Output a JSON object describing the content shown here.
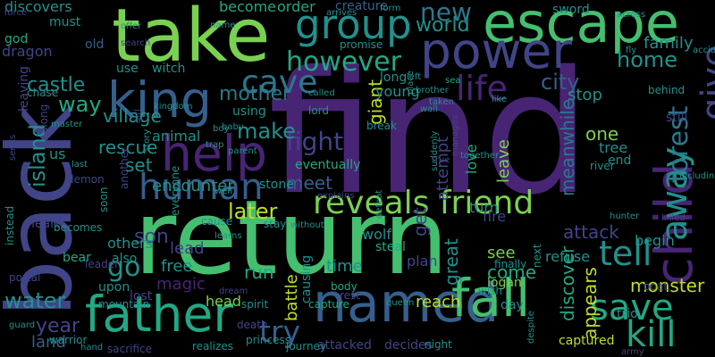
{
  "colors": {
    "background": "#000000",
    "c1": "#440154",
    "c2": "#482475",
    "c3": "#414487",
    "c4": "#355f8d",
    "c5": "#2a788e",
    "c6": "#21918c",
    "c7": "#22a884",
    "c8": "#44bf70",
    "c9": "#7ad151",
    "c10": "#bddf26"
  },
  "words": [
    {
      "text": "find",
      "color": "#482475",
      "rot": 0
    },
    {
      "text": "return",
      "color": "#44bf70",
      "rot": 0
    },
    {
      "text": "back",
      "color": "#414487",
      "rot": -90
    },
    {
      "text": "take",
      "color": "#7ad151",
      "rot": 0
    },
    {
      "text": "escape",
      "color": "#44bf70",
      "rot": 0
    },
    {
      "text": "power",
      "color": "#414487",
      "rot": 0
    },
    {
      "text": "named",
      "color": "#355f8d",
      "rot": 0
    },
    {
      "text": "fall",
      "color": "#44bf70",
      "rot": 0
    },
    {
      "text": "father",
      "color": "#22a884",
      "rot": 0
    },
    {
      "text": "king",
      "color": "#355f8d",
      "rot": 0
    },
    {
      "text": "help",
      "color": "#482475",
      "rot": 0
    },
    {
      "text": "child",
      "color": "#482475",
      "rot": -90
    },
    {
      "text": "group",
      "color": "#21918c",
      "rot": 0
    },
    {
      "text": "human",
      "color": "#355f8d",
      "rot": 0
    },
    {
      "text": "reveals friend",
      "color": "#7ad151",
      "rot": 0
    },
    {
      "text": "life",
      "color": "#482475",
      "rot": 0
    },
    {
      "text": "save",
      "color": "#22a884",
      "rot": 0
    },
    {
      "text": "tell",
      "color": "#21918c",
      "rot": 0
    },
    {
      "text": "kill",
      "color": "#22a884",
      "rot": 0
    },
    {
      "text": "give",
      "color": "#414487",
      "rot": -90
    },
    {
      "text": "away",
      "color": "#21918c",
      "rot": -90
    },
    {
      "text": "forest",
      "color": "#2a788e",
      "rot": -90
    },
    {
      "text": "try",
      "color": "#355f8d",
      "rot": 0
    },
    {
      "text": "cave",
      "color": "#2a788e",
      "rot": 0
    },
    {
      "text": "however",
      "color": "#22a884",
      "rot": 0
    },
    {
      "text": "new",
      "color": "#2a788e",
      "rot": 0
    },
    {
      "text": "world",
      "color": "#21918c",
      "rot": 0
    },
    {
      "text": "home",
      "color": "#21918c",
      "rot": 0
    },
    {
      "text": "city",
      "color": "#355f8d",
      "rot": 0
    },
    {
      "text": "family",
      "color": "#21918c",
      "rot": 0
    },
    {
      "text": "mother",
      "color": "#2a788e",
      "rot": 0
    },
    {
      "text": "fight",
      "color": "#414487",
      "rot": 0
    },
    {
      "text": "meet",
      "color": "#355f8d",
      "rot": 0
    },
    {
      "text": "later",
      "color": "#bddf26",
      "rot": 0
    },
    {
      "text": "make",
      "color": "#21918c",
      "rot": 0
    },
    {
      "text": "village",
      "color": "#21918c",
      "rot": 0
    },
    {
      "text": "way",
      "color": "#22a884",
      "rot": 0
    },
    {
      "text": "rescue",
      "color": "#21918c",
      "rot": 0
    },
    {
      "text": "castle",
      "color": "#21918c",
      "rot": 0
    },
    {
      "text": "island",
      "color": "#21918c",
      "rot": -90
    },
    {
      "text": "water",
      "color": "#21918c",
      "rot": 0
    },
    {
      "text": "year",
      "color": "#414487",
      "rot": 0
    },
    {
      "text": "land",
      "color": "#355f8d",
      "rot": 0
    },
    {
      "text": "go",
      "color": "#21918c",
      "rot": 0
    },
    {
      "text": "son",
      "color": "#414487",
      "rot": 0
    },
    {
      "text": "set",
      "color": "#21918c",
      "rot": 0
    },
    {
      "text": "us",
      "color": "#21918c",
      "rot": 0
    },
    {
      "text": "battle",
      "color": "#bddf26",
      "rot": -90
    },
    {
      "text": "causing",
      "color": "#21918c",
      "rot": -90
    },
    {
      "text": "run",
      "color": "#22a884",
      "rot": 0
    },
    {
      "text": "free",
      "color": "#21918c",
      "rot": 0
    },
    {
      "text": "lead",
      "color": "#414487",
      "rot": 0
    },
    {
      "text": "magic",
      "color": "#482475",
      "rot": 0
    },
    {
      "text": "time",
      "color": "#21918c",
      "rot": 0
    },
    {
      "text": "get",
      "color": "#414487",
      "rot": -90
    },
    {
      "text": "great",
      "color": "#21918c",
      "rot": -90
    },
    {
      "text": "attack",
      "color": "#414487",
      "rot": 0
    },
    {
      "text": "monster",
      "color": "#bddf26",
      "rot": 0
    },
    {
      "text": "appears",
      "color": "#bddf26",
      "rot": -90
    },
    {
      "text": "discover",
      "color": "#22a884",
      "rot": -90
    },
    {
      "text": "see",
      "color": "#7ad151",
      "rot": 0
    },
    {
      "text": "come",
      "color": "#22a884",
      "rot": 0
    },
    {
      "text": "plan",
      "color": "#414487",
      "rot": 0
    },
    {
      "text": "logan",
      "color": "#7ad151",
      "rot": 0
    },
    {
      "text": "refuse",
      "color": "#21918c",
      "rot": 0
    },
    {
      "text": "begin",
      "color": "#21918c",
      "rot": 0
    },
    {
      "text": "reach",
      "color": "#bddf26",
      "rot": 0
    },
    {
      "text": "giant",
      "color": "#bddf26",
      "rot": -90
    },
    {
      "text": "attempt",
      "color": "#414487",
      "rot": -90
    },
    {
      "text": "one",
      "color": "#7ad151",
      "rot": 0
    },
    {
      "text": "tree",
      "color": "#21918c",
      "rot": 0
    },
    {
      "text": "end",
      "color": "#21918c",
      "rot": 0
    },
    {
      "text": "leave",
      "color": "#7ad151",
      "rot": -90
    },
    {
      "text": "love",
      "color": "#22a884",
      "rot": -90
    },
    {
      "text": "turn",
      "color": "#21918c",
      "rot": 0
    },
    {
      "text": "fire",
      "color": "#414487",
      "rot": 0
    },
    {
      "text": "encounter",
      "color": "#21918c",
      "rot": 0
    },
    {
      "text": "animal",
      "color": "#21918c",
      "rot": 0
    },
    {
      "text": "stone",
      "color": "#21918c",
      "rot": 0
    },
    {
      "text": "eventually",
      "color": "#22a884",
      "rot": 0
    },
    {
      "text": "wolf",
      "color": "#21918c",
      "rot": 0
    },
    {
      "text": "steal",
      "color": "#22a884",
      "rot": 0
    },
    {
      "text": "meanwhile",
      "color": "#2a788e",
      "rot": -90
    },
    {
      "text": "stop",
      "color": "#21918c",
      "rot": 0
    },
    {
      "text": "young",
      "color": "#21918c",
      "rot": 0
    },
    {
      "text": "long",
      "color": "#21918c",
      "rot": 0
    },
    {
      "text": "become",
      "color": "#22a884",
      "rot": 0
    },
    {
      "text": "order",
      "color": "#22a884",
      "rot": 0
    },
    {
      "text": "creature",
      "color": "#355f8d",
      "rot": 0
    },
    {
      "text": "discovers",
      "color": "#21918c",
      "rot": 0
    },
    {
      "text": "must",
      "color": "#21918c",
      "rot": 0
    },
    {
      "text": "god",
      "color": "#22a884",
      "rot": 0
    },
    {
      "text": "dragon",
      "color": "#414487",
      "rot": 0
    },
    {
      "text": "old",
      "color": "#355f8d",
      "rot": 0
    },
    {
      "text": "use",
      "color": "#21918c",
      "rot": 0
    },
    {
      "text": "witch",
      "color": "#21918c",
      "rot": 0
    },
    {
      "text": "leaving",
      "color": "#414487",
      "rot": -90
    },
    {
      "text": "along",
      "color": "#414487",
      "rot": -90
    },
    {
      "text": "using",
      "color": "#21918c",
      "rot": 0
    },
    {
      "text": "lord",
      "color": "#21918c",
      "rot": 0
    },
    {
      "text": "break",
      "color": "#21918c",
      "rot": 0
    },
    {
      "text": "sword",
      "color": "#21918c",
      "rot": 0
    },
    {
      "text": "behind",
      "color": "#21918c",
      "rot": 0
    },
    {
      "text": "still",
      "color": "#414487",
      "rot": 0
    },
    {
      "text": "river",
      "color": "#21918c",
      "rot": 0
    },
    {
      "text": "others",
      "color": "#21918c",
      "rot": 0
    },
    {
      "text": "also",
      "color": "#21918c",
      "rot": 0
    },
    {
      "text": "upon",
      "color": "#21918c",
      "rot": 0
    },
    {
      "text": "lost",
      "color": "#414487",
      "rot": 0
    },
    {
      "text": "head",
      "color": "#7ad151",
      "rot": 0
    },
    {
      "text": "spirit",
      "color": "#21918c",
      "rot": 0
    },
    {
      "text": "capture",
      "color": "#22a884",
      "rot": 0
    },
    {
      "text": "attacked",
      "color": "#414487",
      "rot": 0
    },
    {
      "text": "decides",
      "color": "#414487",
      "rot": 0
    },
    {
      "text": "night",
      "color": "#21918c",
      "rot": 0
    },
    {
      "text": "captured",
      "color": "#bddf26",
      "rot": 0
    },
    {
      "text": "bear",
      "color": "#22a884",
      "rot": 0
    },
    {
      "text": "heart",
      "color": "#414487",
      "rot": 0
    },
    {
      "text": "soon",
      "color": "#21918c",
      "rot": -90
    },
    {
      "text": "warrior",
      "color": "#21918c",
      "rot": 0
    },
    {
      "text": "mountain",
      "color": "#21918c",
      "rot": 0
    },
    {
      "text": "princess",
      "color": "#21918c",
      "rot": 0
    },
    {
      "text": "journey",
      "color": "#21918c",
      "rot": 0
    },
    {
      "text": "hand",
      "color": "#21918c",
      "rot": 0
    },
    {
      "text": "sacrifice",
      "color": "#414487",
      "rot": 0
    },
    {
      "text": "realizes",
      "color": "#21918c",
      "rot": 0
    },
    {
      "text": "death",
      "color": "#414487",
      "rot": 0
    },
    {
      "text": "dream",
      "color": "#414487",
      "rot": 0
    },
    {
      "text": "body",
      "color": "#22a884",
      "rot": 0
    },
    {
      "text": "rest",
      "color": "#414487",
      "rot": 0
    },
    {
      "text": "queen",
      "color": "#21918c",
      "rot": 0
    },
    {
      "text": "day",
      "color": "#21918c",
      "rot": 0
    },
    {
      "text": "boat",
      "color": "#414487",
      "rot": 0
    },
    {
      "text": "trio",
      "color": "#21918c",
      "rot": 0
    },
    {
      "text": "wish",
      "color": "#21918c",
      "rot": 0
    },
    {
      "text": "hunter",
      "color": "#21918c",
      "rot": 0
    },
    {
      "text": "killed",
      "color": "#414487",
      "rot": 0
    },
    {
      "text": "finally",
      "color": "#21918c",
      "rot": 0
    },
    {
      "text": "next",
      "color": "#21918c",
      "rot": -90
    },
    {
      "text": "everyone",
      "color": "#21918c",
      "rot": -90
    },
    {
      "text": "cause",
      "color": "#21918c",
      "rot": 0
    },
    {
      "text": "stay",
      "color": "#21918c",
      "rot": 0
    },
    {
      "text": "becomes",
      "color": "#21918c",
      "rot": 0
    },
    {
      "text": "leader",
      "color": "#414487",
      "rot": 0
    },
    {
      "text": "portal",
      "color": "#414487",
      "rot": 0
    },
    {
      "text": "instead",
      "color": "#21918c",
      "rot": -90
    },
    {
      "text": "another",
      "color": "#414487",
      "rot": -90
    },
    {
      "text": "demon",
      "color": "#414487",
      "rot": 0
    },
    {
      "text": "last",
      "color": "#21918c",
      "rot": 0
    },
    {
      "text": "force",
      "color": "#414487",
      "rot": 0
    },
    {
      "text": "chase",
      "color": "#21918c",
      "rot": 0
    },
    {
      "text": "master",
      "color": "#21918c",
      "rot": 0
    },
    {
      "text": "search",
      "color": "#414487",
      "rot": 0
    },
    {
      "text": "offer",
      "color": "#21918c",
      "rot": 0
    },
    {
      "text": "name",
      "color": "#21918c",
      "rot": 0
    },
    {
      "text": "promise",
      "color": "#21918c",
      "rot": 0
    },
    {
      "text": "arrives",
      "color": "#21918c",
      "rot": 0
    },
    {
      "text": "form",
      "color": "#21918c",
      "rot": 0
    },
    {
      "text": "across",
      "color": "#21918c",
      "rot": 0
    },
    {
      "text": "fly",
      "color": "#21918c",
      "rot": 0
    },
    {
      "text": "accidentally",
      "color": "#21918c",
      "rot": 0
    },
    {
      "text": "sea",
      "color": "#22a884",
      "rot": 0
    },
    {
      "text": "brother",
      "color": "#21918c",
      "rot": 0
    },
    {
      "text": "taken",
      "color": "#21918c",
      "rot": 0
    },
    {
      "text": "called",
      "color": "#21918c",
      "rot": 0
    },
    {
      "text": "like",
      "color": "#21918c",
      "rot": 0
    },
    {
      "text": "together",
      "color": "#21918c",
      "rot": 0
    },
    {
      "text": "manages",
      "color": "#414487",
      "rot": -90
    },
    {
      "text": "suddenly",
      "color": "#21918c",
      "rot": -90
    },
    {
      "text": "well",
      "color": "#21918c",
      "rot": 0
    },
    {
      "text": "explains",
      "color": "#414487",
      "rot": 0
    },
    {
      "text": "including",
      "color": "#21918c",
      "rot": 0
    },
    {
      "text": "baby",
      "color": "#21918c",
      "rot": 0
    },
    {
      "text": "trap",
      "color": "#21918c",
      "rot": 0
    },
    {
      "text": "parent",
      "color": "#21918c",
      "rot": 0
    },
    {
      "text": "without",
      "color": "#21918c",
      "rot": 0
    },
    {
      "text": "kingdom",
      "color": "#21918c",
      "rot": 0
    },
    {
      "text": "story",
      "color": "#21918c",
      "rot": -90
    },
    {
      "text": "girl",
      "color": "#414487",
      "rot": -90
    },
    {
      "text": "boy",
      "color": "#21918c",
      "rot": 0
    },
    {
      "text": "left",
      "color": "#21918c",
      "rot": 0
    },
    {
      "text": "place",
      "color": "#21918c",
      "rot": -90
    },
    {
      "text": "wall",
      "color": "#21918c",
      "rot": 0
    },
    {
      "text": "true",
      "color": "#414487",
      "rot": 0
    },
    {
      "text": "defeat",
      "color": "#21918c",
      "rot": -90
    },
    {
      "text": "learns",
      "color": "#21918c",
      "rot": 0
    },
    {
      "text": "army",
      "color": "#414487",
      "rot": 0
    },
    {
      "text": "despite",
      "color": "#21918c",
      "rot": -90
    },
    {
      "text": "guard",
      "color": "#21918c",
      "rot": 0
    },
    {
      "text": "sends",
      "color": "#414487",
      "rot": -90
    },
    {
      "text": "inside",
      "color": "#414487",
      "rot": -90
    }
  ]
}
